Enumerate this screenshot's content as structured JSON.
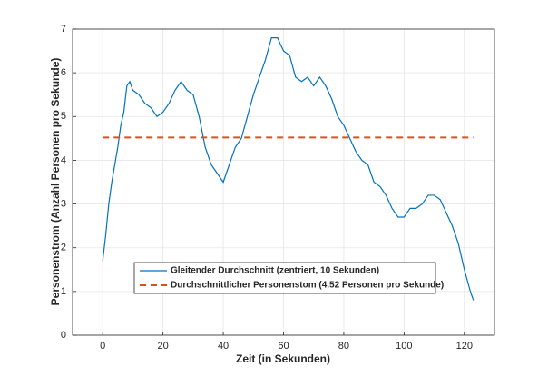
{
  "chart_data": {
    "type": "line",
    "xlabel": "Zeit (in Sekunden)",
    "ylabel": "Personenstrom (Anzahl Personen pro Sekunde)",
    "xlim": [
      -10,
      130
    ],
    "xticks": [
      0,
      20,
      40,
      60,
      80,
      100,
      120
    ],
    "ylim": [
      0,
      7
    ],
    "yticks": [
      0,
      1,
      2,
      3,
      4,
      5,
      6,
      7
    ],
    "grid": true,
    "legend": "lower left",
    "series": [
      {
        "name": "Gleitender Durchschnitt (zentriert, 10 Sekunden)",
        "color": "#0072bd",
        "linestyle": "solid",
        "x": [
          0,
          1,
          2,
          3,
          4,
          5,
          6,
          7,
          8,
          9,
          10,
          12,
          14,
          16,
          18,
          20,
          22,
          24,
          26,
          28,
          30,
          32,
          34,
          36,
          38,
          40,
          42,
          44,
          46,
          48,
          50,
          52,
          54,
          56,
          58,
          60,
          62,
          64,
          66,
          68,
          70,
          72,
          74,
          76,
          78,
          80,
          82,
          84,
          86,
          88,
          90,
          92,
          94,
          96,
          98,
          100,
          102,
          104,
          106,
          108,
          110,
          112,
          114,
          116,
          118,
          120,
          122,
          123
        ],
        "values": [
          1.7,
          2.3,
          3.0,
          3.5,
          3.9,
          4.3,
          4.8,
          5.1,
          5.7,
          5.8,
          5.6,
          5.5,
          5.3,
          5.2,
          5.0,
          5.1,
          5.3,
          5.6,
          5.8,
          5.6,
          5.5,
          5.0,
          4.3,
          3.9,
          3.7,
          3.5,
          3.9,
          4.3,
          4.5,
          5.0,
          5.5,
          5.9,
          6.3,
          6.8,
          6.8,
          6.5,
          6.4,
          5.9,
          5.8,
          5.9,
          5.7,
          5.9,
          5.7,
          5.4,
          5.0,
          4.8,
          4.5,
          4.2,
          4.0,
          3.9,
          3.5,
          3.4,
          3.2,
          2.9,
          2.7,
          2.7,
          2.9,
          2.9,
          3.0,
          3.2,
          3.2,
          3.1,
          2.8,
          2.5,
          2.1,
          1.5,
          1.0,
          0.8
        ]
      },
      {
        "name": "Durchschnittlicher Personenstom (4.52 Personen pro Sekunde)",
        "color": "#d95319",
        "linestyle": "dashed",
        "x": [
          0,
          123
        ],
        "values": [
          4.52,
          4.52
        ]
      }
    ]
  }
}
